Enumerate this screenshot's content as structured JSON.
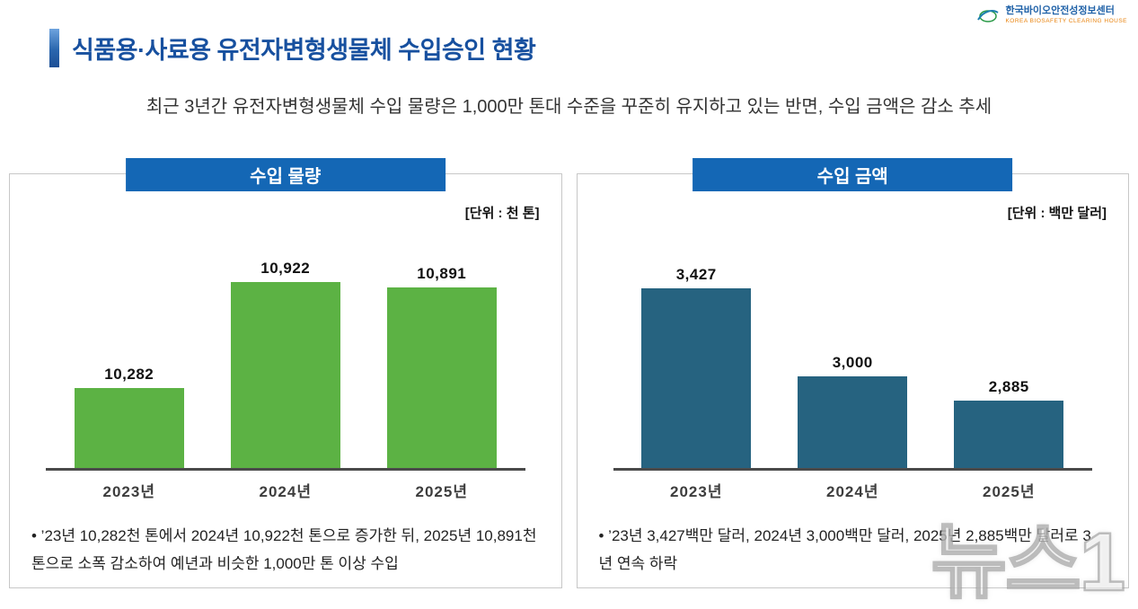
{
  "logo": {
    "org_name": "한국바이오안전성정보센터",
    "org_sub": "KOREA BIOSAFETY CLEARING HOUSE"
  },
  "header": {
    "title": "식품용·사료용 유전자변형생물체 수입승인 현황",
    "subtitle": "최근 3년간 유전자변형생물체 수입 물량은 1,000만 톤대 수준을 꾸준히 유지하고 있는 반면, 수입 금액은 감소 추세"
  },
  "watermark": "뉴스1",
  "colors": {
    "title_blue": "#17509f",
    "header_box_blue": "#1467b5",
    "bar_green": "#5cb244",
    "bar_navy": "#266380",
    "axis_gray": "#4a4a4a"
  },
  "chart_data": [
    {
      "type": "bar",
      "title": "수입 물량",
      "unit_label": "[단위 : 천 톤]",
      "categories": [
        "2023년",
        "2024년",
        "2025년"
      ],
      "values": [
        10282,
        10922,
        10891
      ],
      "value_labels": [
        "10,282",
        "10,922",
        "10,891"
      ],
      "bar_color": "#5cb244",
      "ylim": [
        9800,
        11100
      ],
      "legend": "none",
      "grid": "off",
      "note": "• ’23년 10,282천 톤에서 2024년 10,922천 톤으로 증가한 뒤, 2025년 10,891천 톤으로 소폭 감소하여 예년과 비슷한 1,000만 톤 이상 수입"
    },
    {
      "type": "bar",
      "title": "수입 금액",
      "unit_label": "[단위 : 백만 달러]",
      "categories": [
        "2023년",
        "2024년",
        "2025년"
      ],
      "values": [
        3427,
        3000,
        2885
      ],
      "value_labels": [
        "3,427",
        "3,000",
        "2,885"
      ],
      "bar_color": "#266380",
      "ylim": [
        2560,
        3600
      ],
      "legend": "none",
      "grid": "off",
      "note": "• ’23년 3,427백만 달러, 2024년 3,000백만 달러, 2025년 2,885백만 달러로 3년 연속 하락"
    }
  ]
}
